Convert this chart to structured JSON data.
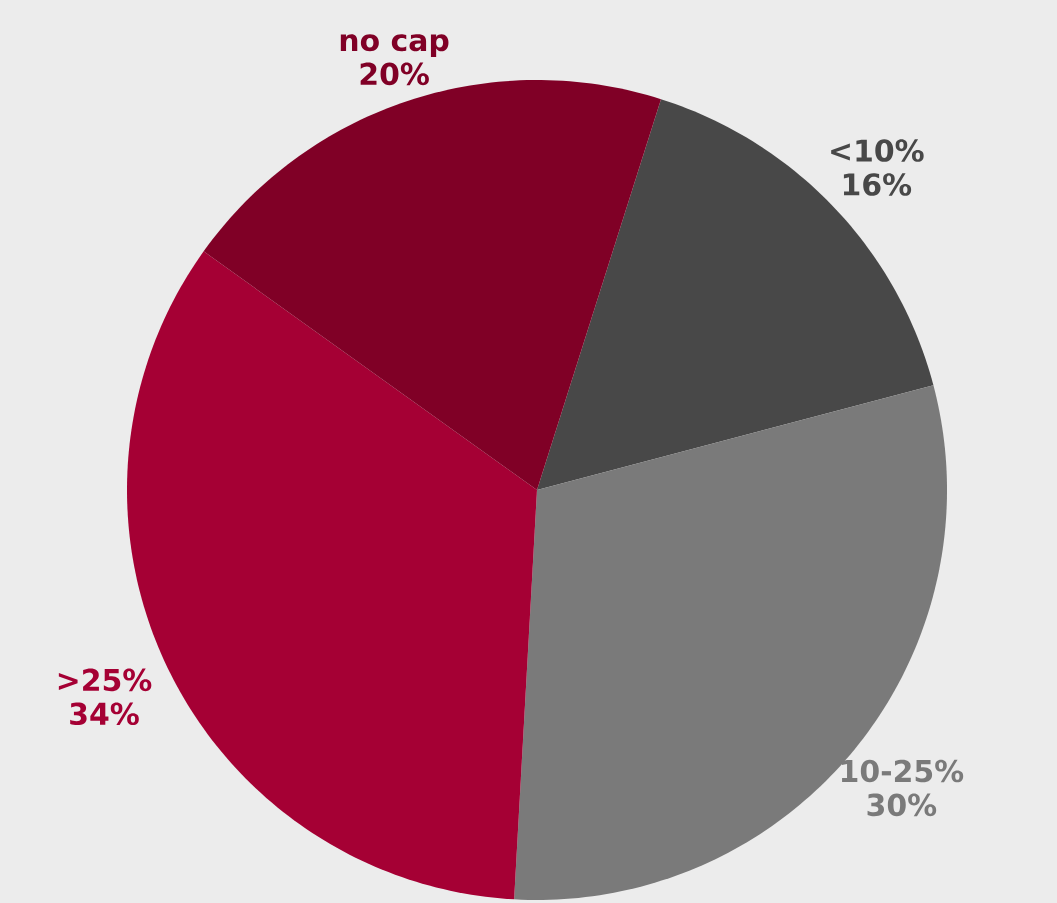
{
  "chart_data": {
    "type": "pie",
    "categories": [
      "<10%",
      "10-25%",
      ">25%",
      "no cap"
    ],
    "values": [
      16,
      30,
      34,
      20
    ],
    "value_labels": [
      "16%",
      "30%",
      "34%",
      "20%"
    ],
    "colors": [
      "#484848",
      "#7a7a7a",
      "#a50034",
      "#800026"
    ]
  }
}
